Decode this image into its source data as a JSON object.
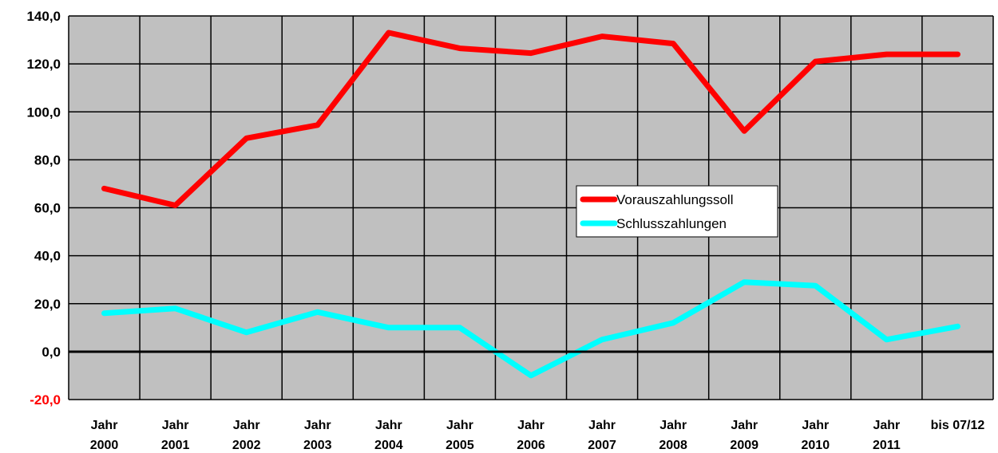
{
  "chart_data": {
    "type": "line",
    "categories": [
      [
        "Jahr",
        "2000"
      ],
      [
        "Jahr",
        "2001"
      ],
      [
        "Jahr",
        "2002"
      ],
      [
        "Jahr",
        "2003"
      ],
      [
        "Jahr",
        "2004"
      ],
      [
        "Jahr",
        "2005"
      ],
      [
        "Jahr",
        "2006"
      ],
      [
        "Jahr",
        "2007"
      ],
      [
        "Jahr",
        "2008"
      ],
      [
        "Jahr",
        "2009"
      ],
      [
        "Jahr",
        "2010"
      ],
      [
        "Jahr",
        "2011"
      ],
      [
        "bis 07/12"
      ]
    ],
    "series": [
      {
        "name": "Vorauszahlungssoll",
        "color": "#ff0000",
        "values": [
          68,
          61,
          89,
          94.5,
          133,
          126.5,
          124.5,
          131.5,
          128.5,
          92,
          121,
          124,
          124
        ]
      },
      {
        "name": "Schlusszahlungen",
        "color": "#00ffff",
        "values": [
          16,
          18,
          8,
          16.5,
          10,
          10,
          -10,
          5,
          12,
          29,
          27.5,
          5,
          10.5
        ]
      }
    ],
    "ylim": [
      -20,
      140
    ],
    "yticks": [
      "140,0",
      "120,0",
      "100,0",
      "80,0",
      "60,0",
      "40,0",
      "20,0",
      "0,0",
      "-20,0"
    ],
    "yticks_values": [
      140,
      120,
      100,
      80,
      60,
      40,
      20,
      0,
      -20
    ],
    "negative_tick_color": "#ff0000",
    "plot_background": "#c0c0c0",
    "grid": true,
    "legend_position": "center-right"
  }
}
